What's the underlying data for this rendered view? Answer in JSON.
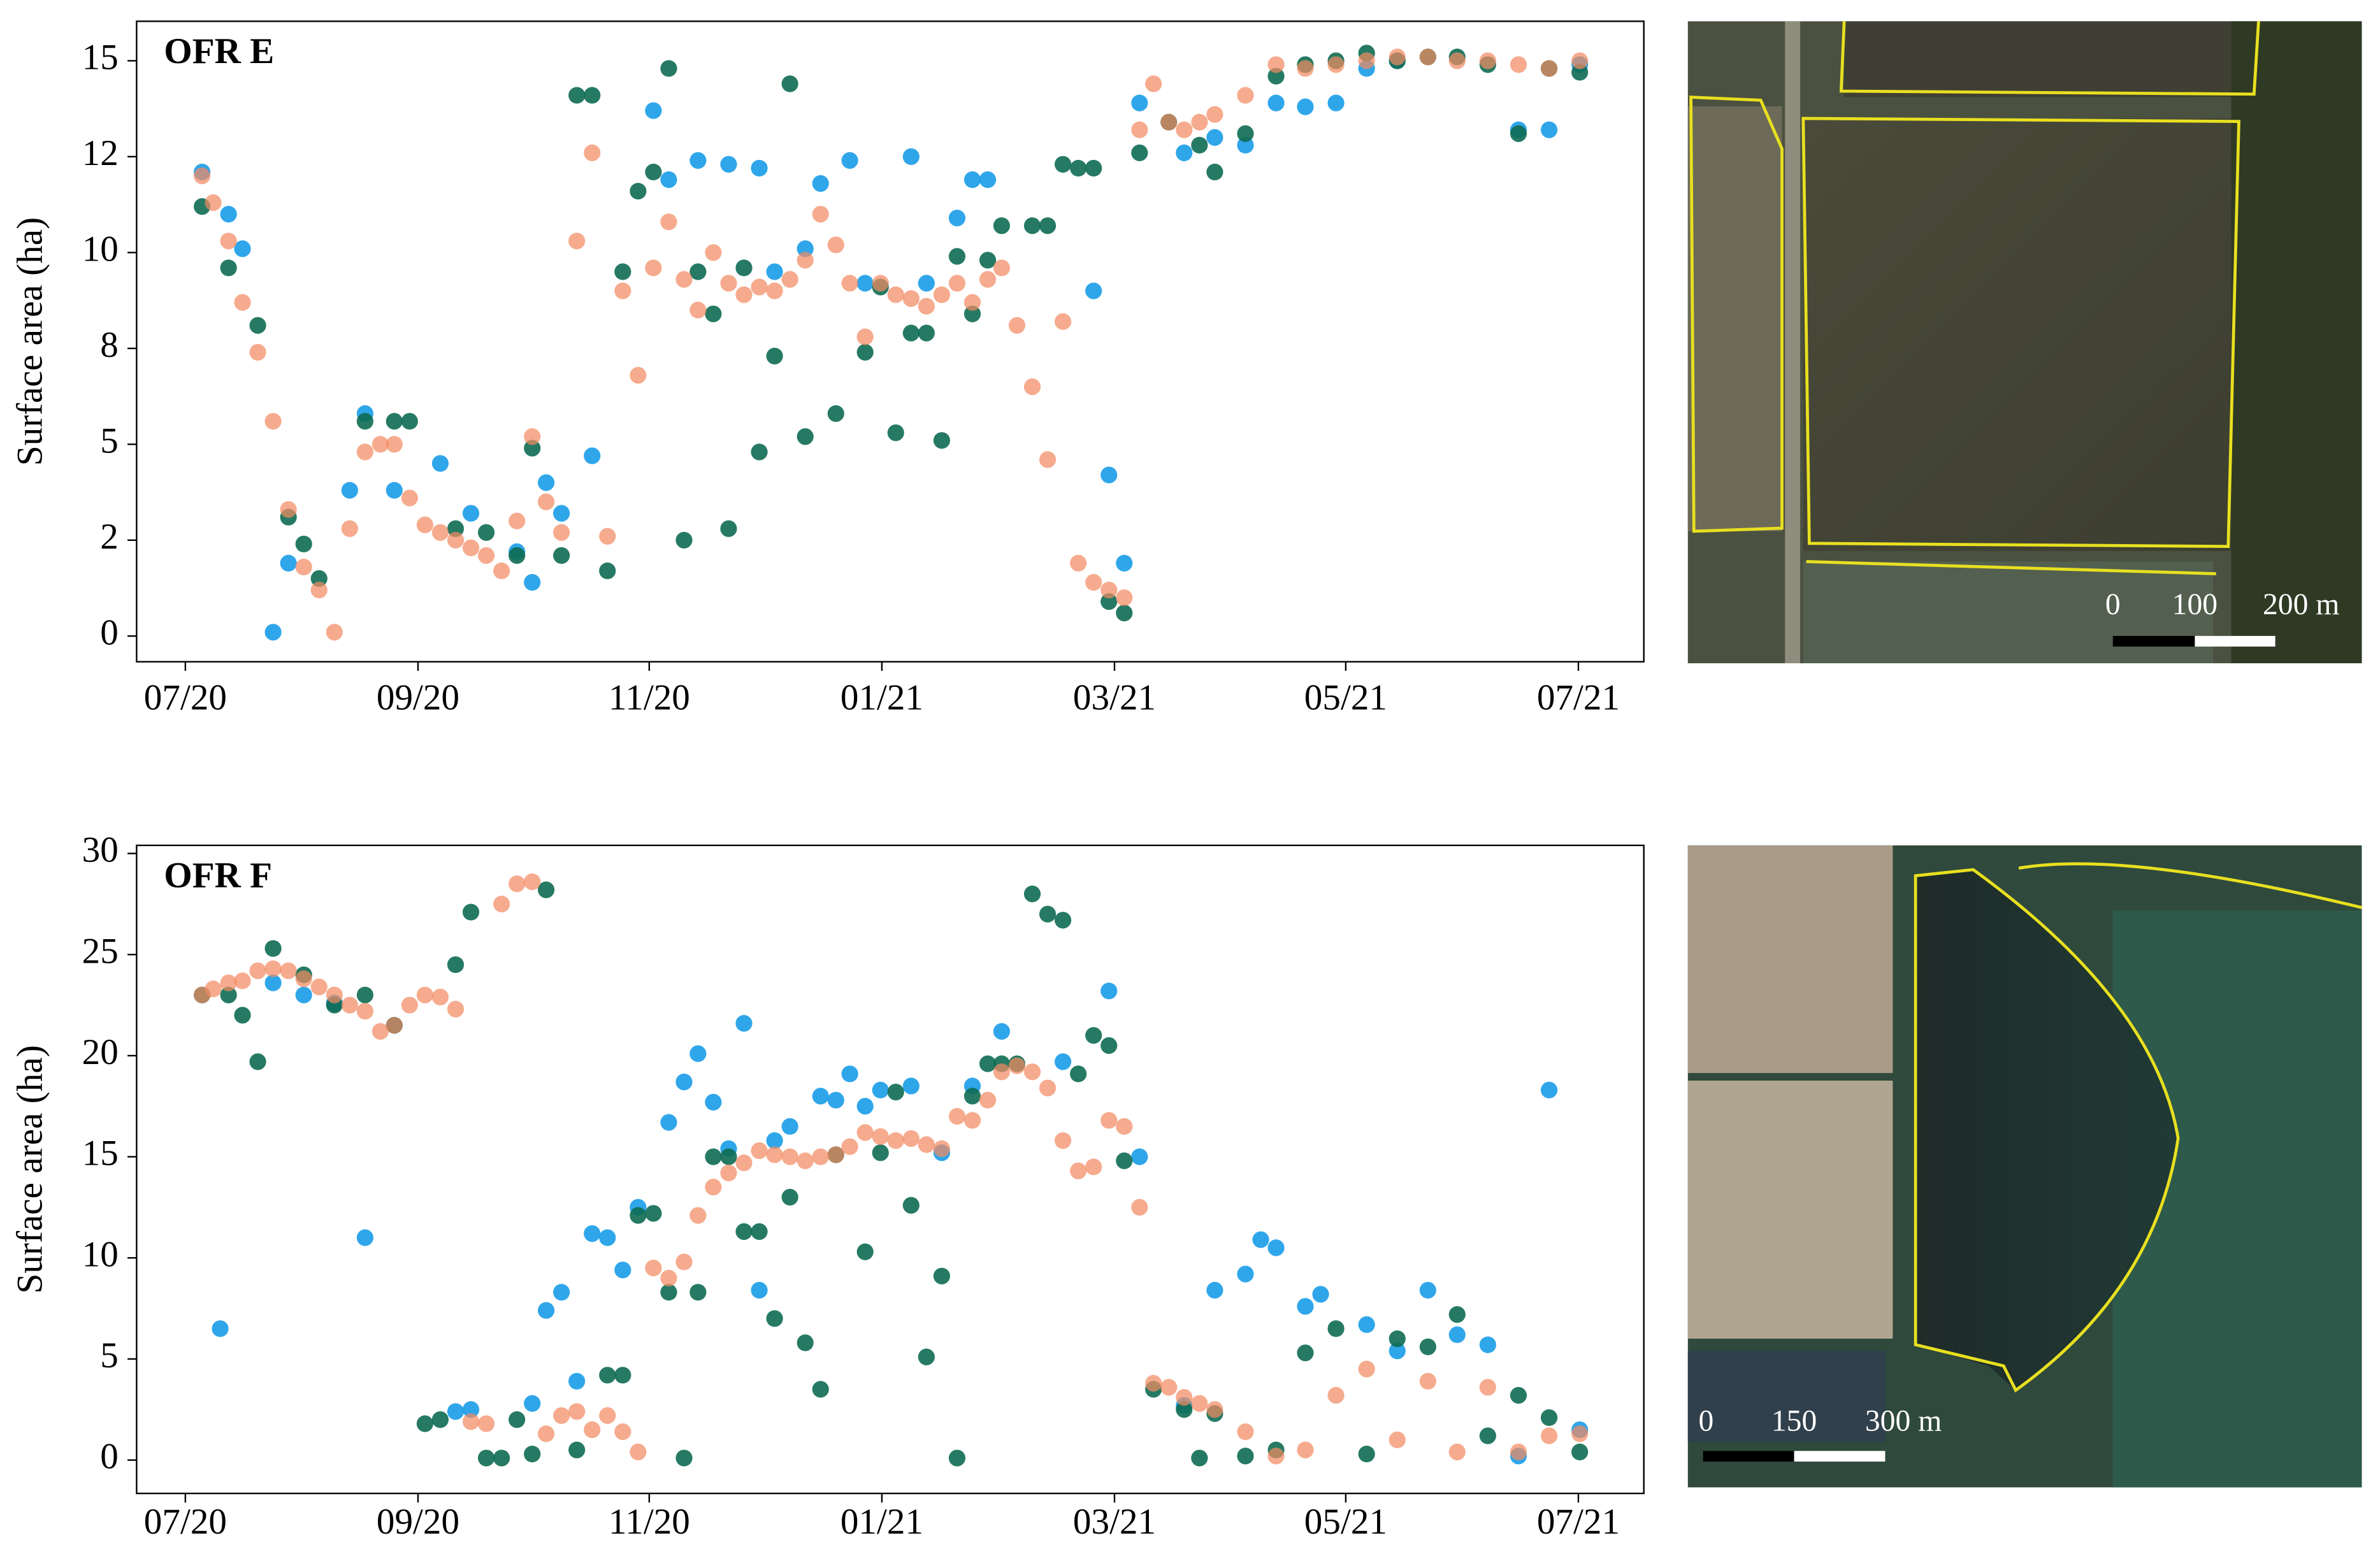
{
  "chart_data": [
    {
      "type": "scatter",
      "title": "OFR E",
      "ylabel": "Surface area (ha)",
      "xlim": [
        2020.465,
        2021.547
      ],
      "ylim": [
        -0.67,
        16.03
      ],
      "xticks": [
        {
          "value": 2020.5,
          "label": "07/20"
        },
        {
          "value": 2020.667,
          "label": "09/20"
        },
        {
          "value": 2020.833,
          "label": "11/20"
        },
        {
          "value": 2021.0,
          "label": "01/21"
        },
        {
          "value": 2021.167,
          "label": "03/21"
        },
        {
          "value": 2021.333,
          "label": "05/21"
        },
        {
          "value": 2021.5,
          "label": "07/21"
        }
      ],
      "yticks": [
        0,
        {
          "value": 2.5,
          "label": "2"
        },
        5,
        {
          "value": 7.5,
          "label": "8"
        },
        10,
        {
          "value": 12.5,
          "label": "12"
        },
        15
      ],
      "series": [
        {
          "color": "#1a9ce8",
          "x": [
            2020.512,
            2020.531,
            2020.541,
            2020.563,
            2020.574,
            2020.618,
            2020.629,
            2020.65,
            2020.683,
            2020.705,
            2020.738,
            2020.749,
            2020.759,
            2020.77,
            2020.792,
            2020.836,
            2020.847,
            2020.868,
            2020.89,
            2020.912,
            2020.923,
            2020.945,
            2020.956,
            2020.977,
            2020.988,
            2021.021,
            2021.032,
            2021.054,
            2021.065,
            2021.076,
            2021.152,
            2021.163,
            2021.174,
            2021.185,
            2021.217,
            2021.239,
            2021.261,
            2021.283,
            2021.304,
            2021.326,
            2021.348,
            2021.37,
            2021.457,
            2021.479,
            2021.501
          ],
          "values": [
            12.1,
            11,
            10.1,
            0.1,
            1.9,
            3.8,
            5.8,
            3.8,
            4.5,
            3.2,
            2.2,
            1.4,
            4,
            3.2,
            4.7,
            13.7,
            11.9,
            12.4,
            12.3,
            12.2,
            9.5,
            10.1,
            11.8,
            12.4,
            9.2,
            12.5,
            9.2,
            10.9,
            11.9,
            11.9,
            9,
            4.2,
            1.9,
            13.9,
            12.6,
            13,
            12.8,
            13.9,
            13.8,
            13.9,
            14.8,
            15,
            13.2,
            13.2,
            14.9
          ]
        },
        {
          "color": "#0e6b52",
          "x": [
            2020.512,
            2020.531,
            2020.552,
            2020.574,
            2020.585,
            2020.596,
            2020.629,
            2020.65,
            2020.661,
            2020.694,
            2020.716,
            2020.738,
            2020.749,
            2020.77,
            2020.781,
            2020.792,
            2020.803,
            2020.814,
            2020.825,
            2020.836,
            2020.847,
            2020.858,
            2020.868,
            2020.879,
            2020.89,
            2020.901,
            2020.912,
            2020.923,
            2020.934,
            2020.945,
            2020.967,
            2020.988,
            2020.999,
            2021.01,
            2021.021,
            2021.032,
            2021.043,
            2021.054,
            2021.065,
            2021.076,
            2021.086,
            2021.108,
            2021.119,
            2021.13,
            2021.141,
            2021.152,
            2021.163,
            2021.174,
            2021.185,
            2021.206,
            2021.228,
            2021.239,
            2021.261,
            2021.283,
            2021.304,
            2021.326,
            2021.348,
            2021.37,
            2021.392,
            2021.413,
            2021.435,
            2021.457,
            2021.479,
            2021.501
          ],
          "values": [
            11.2,
            9.6,
            8.1,
            3.1,
            2.4,
            1.5,
            5.6,
            5.6,
            5.6,
            2.8,
            2.7,
            2.1,
            4.9,
            2.1,
            14.1,
            14.1,
            1.7,
            9.5,
            11.6,
            12.1,
            14.8,
            2.5,
            9.5,
            8.4,
            2.8,
            9.6,
            4.8,
            7.3,
            14.4,
            5.2,
            5.8,
            7.4,
            9.1,
            5.3,
            7.9,
            7.9,
            5.1,
            9.9,
            8.4,
            9.8,
            10.7,
            10.7,
            10.7,
            12.3,
            12.2,
            12.2,
            0.9,
            0.6,
            12.6,
            13.4,
            12.8,
            12.1,
            13.1,
            14.6,
            14.9,
            15,
            15.2,
            15,
            15.1,
            15.1,
            14.9,
            13.1,
            14.8,
            14.7
          ]
        },
        {
          "color": "#f38a62",
          "x": [
            2020.512,
            2020.52,
            2020.531,
            2020.541,
            2020.552,
            2020.563,
            2020.574,
            2020.585,
            2020.596,
            2020.607,
            2020.618,
            2020.629,
            2020.64,
            2020.65,
            2020.661,
            2020.672,
            2020.683,
            2020.694,
            2020.705,
            2020.716,
            2020.727,
            2020.738,
            2020.749,
            2020.759,
            2020.77,
            2020.781,
            2020.792,
            2020.803,
            2020.814,
            2020.825,
            2020.836,
            2020.847,
            2020.858,
            2020.868,
            2020.879,
            2020.89,
            2020.901,
            2020.912,
            2020.923,
            2020.934,
            2020.945,
            2020.956,
            2020.967,
            2020.977,
            2020.988,
            2020.999,
            2021.01,
            2021.021,
            2021.032,
            2021.043,
            2021.054,
            2021.065,
            2021.076,
            2021.086,
            2021.097,
            2021.108,
            2021.119,
            2021.13,
            2021.141,
            2021.152,
            2021.163,
            2021.174,
            2021.185,
            2021.195,
            2021.206,
            2021.217,
            2021.228,
            2021.239,
            2021.261,
            2021.283,
            2021.304,
            2021.326,
            2021.348,
            2021.37,
            2021.392,
            2021.413,
            2021.435,
            2021.457,
            2021.479,
            2021.501
          ],
          "values": [
            12,
            11.3,
            10.3,
            8.7,
            7.4,
            5.6,
            3.3,
            1.8,
            1.2,
            0.1,
            2.8,
            4.8,
            5,
            5,
            3.6,
            2.9,
            2.7,
            2.5,
            2.3,
            2.1,
            1.7,
            3,
            5.2,
            3.5,
            2.7,
            10.3,
            12.6,
            2.6,
            9,
            6.8,
            9.6,
            10.8,
            9.3,
            8.5,
            10,
            9.2,
            8.9,
            9.1,
            9,
            9.3,
            9.8,
            11,
            10.2,
            9.2,
            7.8,
            9.2,
            8.9,
            8.8,
            8.6,
            8.9,
            9.2,
            8.7,
            9.3,
            9.6,
            8.1,
            6.5,
            4.6,
            8.2,
            1.9,
            1.4,
            1.2,
            1,
            13.2,
            14.4,
            13.4,
            13.2,
            13.4,
            13.6,
            14.1,
            14.9,
            14.8,
            14.9,
            15,
            15.1,
            15.1,
            15,
            15,
            14.9,
            14.8,
            15
          ]
        }
      ]
    },
    {
      "type": "scatter",
      "title": "OFR F",
      "ylabel": "Surface area (ha)",
      "xlim": [
        2020.465,
        2021.547
      ],
      "ylim": [
        -1.65,
        30.4
      ],
      "xticks": [
        {
          "value": 2020.5,
          "label": "07/20"
        },
        {
          "value": 2020.667,
          "label": "09/20"
        },
        {
          "value": 2020.833,
          "label": "11/20"
        },
        {
          "value": 2021.0,
          "label": "01/21"
        },
        {
          "value": 2021.167,
          "label": "03/21"
        },
        {
          "value": 2021.333,
          "label": "05/21"
        },
        {
          "value": 2021.5,
          "label": "07/21"
        }
      ],
      "yticks": [
        0,
        5,
        10,
        15,
        20,
        25,
        30
      ],
      "series": [
        {
          "color": "#1a9ce8",
          "x": [
            2020.525,
            2020.563,
            2020.585,
            2020.607,
            2020.629,
            2020.65,
            2020.694,
            2020.705,
            2020.749,
            2020.759,
            2020.77,
            2020.781,
            2020.792,
            2020.803,
            2020.814,
            2020.825,
            2020.847,
            2020.858,
            2020.868,
            2020.879,
            2020.89,
            2020.901,
            2020.912,
            2020.923,
            2020.934,
            2020.956,
            2020.967,
            2020.977,
            2020.988,
            2020.999,
            2021.021,
            2021.043,
            2021.065,
            2021.086,
            2021.13,
            2021.163,
            2021.185,
            2021.217,
            2021.239,
            2021.261,
            2021.272,
            2021.283,
            2021.304,
            2021.315,
            2021.348,
            2021.37,
            2021.392,
            2021.413,
            2021.435,
            2021.457,
            2021.479,
            2021.501
          ],
          "values": [
            6.5,
            23.6,
            23,
            22.6,
            11,
            21.5,
            2.4,
            2.5,
            2.8,
            7.4,
            8.3,
            3.9,
            11.2,
            11,
            9.4,
            12.5,
            16.7,
            18.7,
            20.1,
            17.7,
            15.4,
            21.6,
            8.4,
            15.8,
            16.5,
            18,
            17.8,
            19.1,
            17.5,
            18.3,
            18.5,
            15.2,
            18.5,
            21.2,
            19.7,
            23.2,
            15,
            2.7,
            8.4,
            9.2,
            10.9,
            10.5,
            7.6,
            8.2,
            6.7,
            5.4,
            8.4,
            6.2,
            5.7,
            0.2,
            18.3,
            1.5
          ]
        },
        {
          "color": "#0e6b52",
          "x": [
            2020.512,
            2020.531,
            2020.541,
            2020.552,
            2020.563,
            2020.585,
            2020.607,
            2020.629,
            2020.65,
            2020.672,
            2020.683,
            2020.694,
            2020.705,
            2020.716,
            2020.727,
            2020.738,
            2020.749,
            2020.759,
            2020.781,
            2020.803,
            2020.814,
            2020.825,
            2020.836,
            2020.847,
            2020.858,
            2020.868,
            2020.879,
            2020.89,
            2020.901,
            2020.912,
            2020.923,
            2020.934,
            2020.945,
            2020.956,
            2020.967,
            2020.988,
            2020.999,
            2021.01,
            2021.021,
            2021.032,
            2021.043,
            2021.054,
            2021.065,
            2021.076,
            2021.086,
            2021.097,
            2021.108,
            2021.119,
            2021.13,
            2021.141,
            2021.152,
            2021.163,
            2021.174,
            2021.195,
            2021.217,
            2021.228,
            2021.239,
            2021.261,
            2021.283,
            2021.304,
            2021.326,
            2021.348,
            2021.37,
            2021.392,
            2021.413,
            2021.435,
            2021.457,
            2021.479,
            2021.501
          ],
          "values": [
            23,
            23,
            22,
            19.7,
            25.3,
            24,
            22.5,
            23,
            21.5,
            1.8,
            2,
            24.5,
            27.1,
            0.1,
            0.1,
            2,
            0.3,
            28.2,
            0.5,
            4.2,
            4.2,
            12.1,
            12.2,
            8.3,
            0.1,
            8.3,
            15,
            15,
            11.3,
            11.3,
            7,
            13,
            5.8,
            3.5,
            15.1,
            10.3,
            15.2,
            18.2,
            12.6,
            5.1,
            9.1,
            0.1,
            18,
            19.6,
            19.6,
            19.6,
            28,
            27,
            26.7,
            19.1,
            21,
            20.5,
            14.8,
            3.5,
            2.5,
            0.1,
            2.3,
            0.2,
            0.5,
            5.3,
            6.5,
            0.3,
            6,
            5.6,
            7.2,
            1.2,
            3.2,
            2.1,
            0.4
          ]
        },
        {
          "color": "#f38a62",
          "x": [
            2020.512,
            2020.52,
            2020.531,
            2020.541,
            2020.552,
            2020.563,
            2020.574,
            2020.585,
            2020.596,
            2020.607,
            2020.618,
            2020.629,
            2020.64,
            2020.65,
            2020.661,
            2020.672,
            2020.683,
            2020.694,
            2020.705,
            2020.716,
            2020.727,
            2020.738,
            2020.749,
            2020.759,
            2020.77,
            2020.781,
            2020.792,
            2020.803,
            2020.814,
            2020.825,
            2020.836,
            2020.847,
            2020.858,
            2020.868,
            2020.879,
            2020.89,
            2020.901,
            2020.912,
            2020.923,
            2020.934,
            2020.945,
            2020.956,
            2020.967,
            2020.977,
            2020.988,
            2020.999,
            2021.01,
            2021.021,
            2021.032,
            2021.043,
            2021.054,
            2021.065,
            2021.076,
            2021.086,
            2021.097,
            2021.108,
            2021.119,
            2021.13,
            2021.141,
            2021.152,
            2021.163,
            2021.174,
            2021.185,
            2021.195,
            2021.206,
            2021.217,
            2021.228,
            2021.239,
            2021.261,
            2021.283,
            2021.304,
            2021.326,
            2021.348,
            2021.37,
            2021.392,
            2021.413,
            2021.435,
            2021.457,
            2021.479,
            2021.501
          ],
          "values": [
            23,
            23.3,
            23.6,
            23.7,
            24.2,
            24.3,
            24.2,
            23.8,
            23.4,
            23,
            22.5,
            22.2,
            21.2,
            21.5,
            22.5,
            23,
            22.9,
            22.3,
            1.9,
            1.8,
            27.5,
            28.5,
            28.6,
            1.3,
            2.2,
            2.4,
            1.5,
            2.2,
            1.4,
            0.4,
            9.5,
            9,
            9.8,
            12.1,
            13.5,
            14.2,
            14.7,
            15.3,
            15.1,
            15,
            14.8,
            15,
            15.1,
            15.5,
            16.2,
            16,
            15.8,
            15.9,
            15.6,
            15.4,
            17,
            16.8,
            17.8,
            19.2,
            19.5,
            19.2,
            18.4,
            15.8,
            14.3,
            14.5,
            16.8,
            16.5,
            12.5,
            3.8,
            3.6,
            3.1,
            2.8,
            2.5,
            1.4,
            0.2,
            0.5,
            3.2,
            4.5,
            1,
            3.9,
            0.4,
            3.6,
            0.4,
            1.2,
            1.3
          ]
        }
      ]
    }
  ],
  "maps": [
    {
      "scale_labels": [
        "0",
        "100",
        "200 m"
      ]
    },
    {
      "scale_labels": [
        "0",
        "150",
        "300 m"
      ]
    }
  ]
}
